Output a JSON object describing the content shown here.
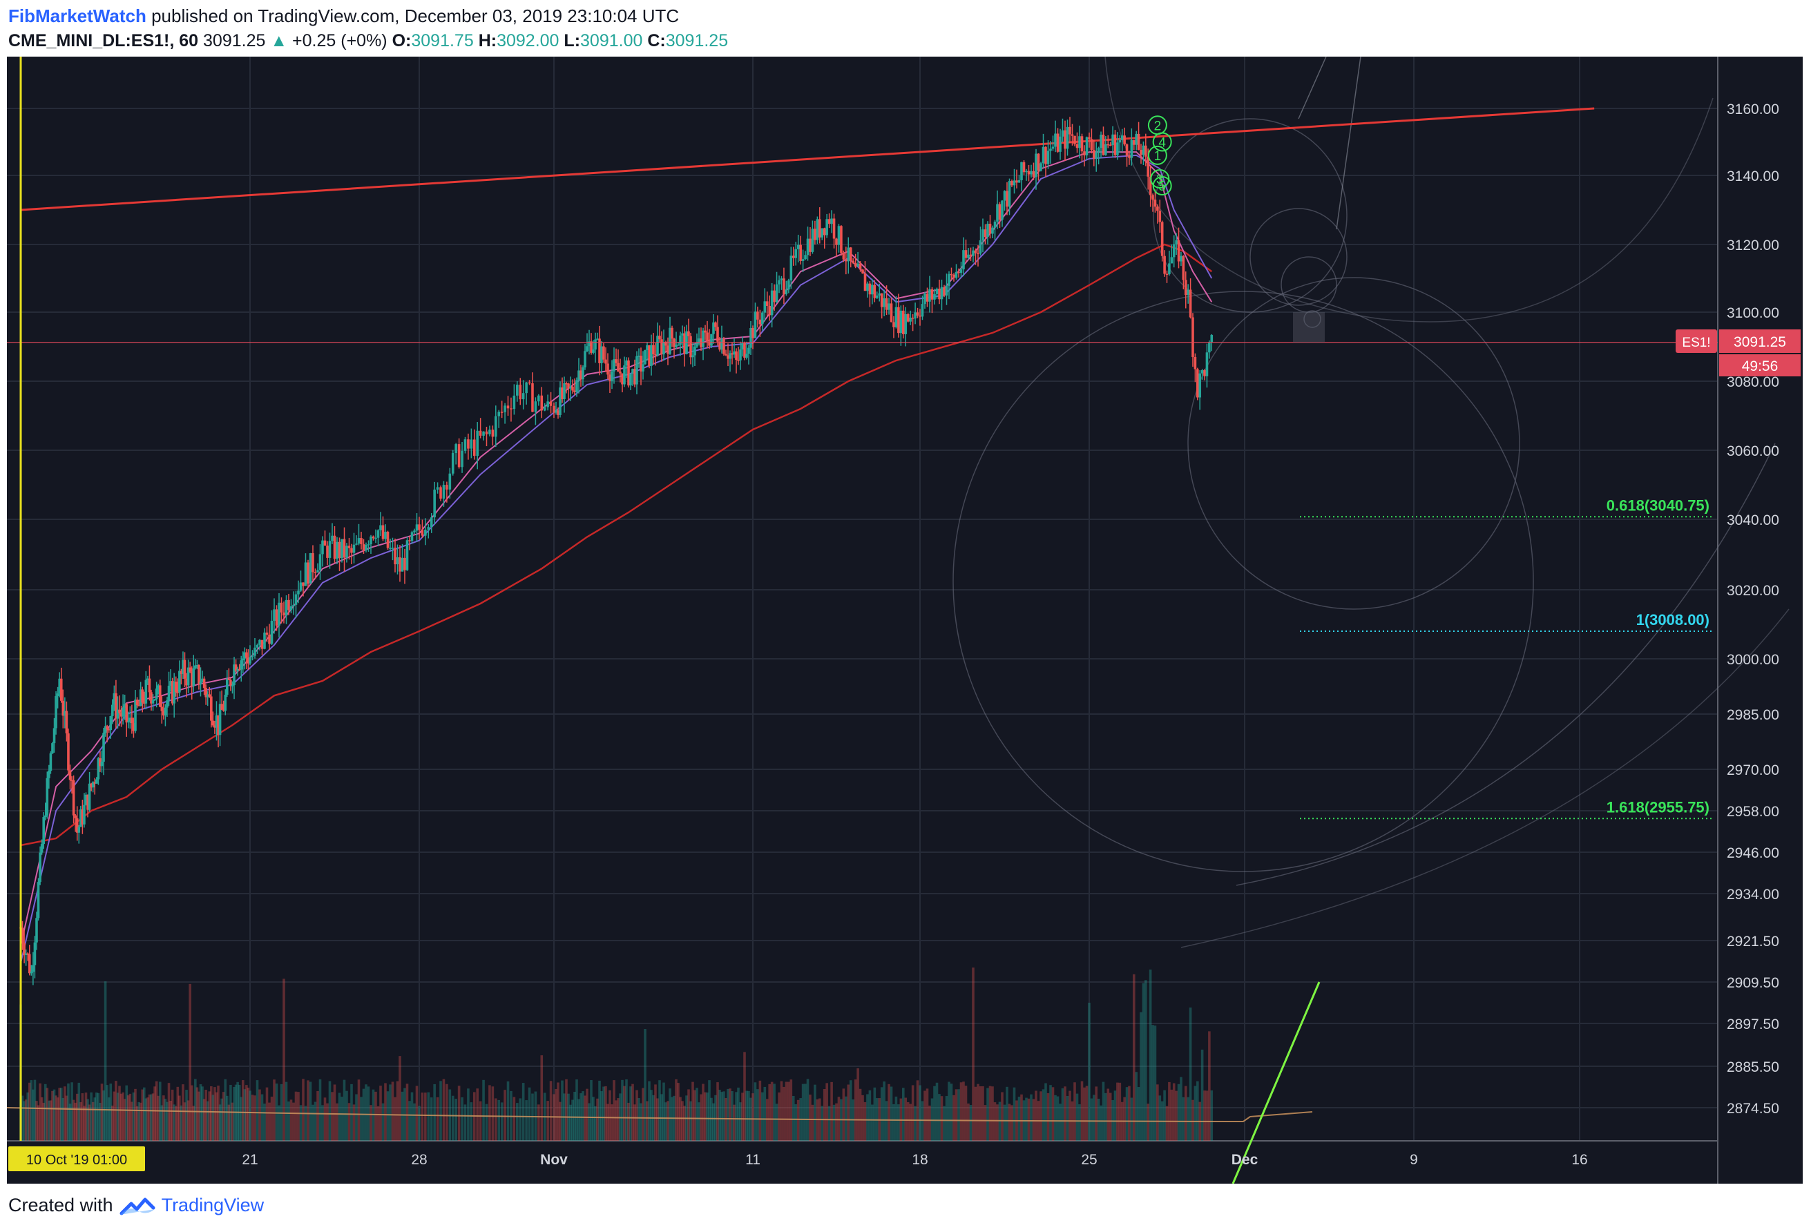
{
  "header": {
    "author": "FibMarketWatch",
    "published": "published on TradingView.com, December 03, 2019 23:10:04 UTC",
    "symbol": "CME_MINI_DL:ES1!, 60",
    "last": "3091.25",
    "up_arrow": "▲",
    "change": "+0.25 (+0%)",
    "o_label": "O:",
    "o_value": "3091.75",
    "h_label": "H:",
    "h_value": "3092.00",
    "l_label": "L:",
    "l_value": "3091.00",
    "c_label": "C:",
    "c_value": "3091.25"
  },
  "chart_data": {
    "type": "candlestick",
    "symbol": "CME_MINI_DL:ES1!",
    "interval": "60",
    "y_ticks": [
      3160.0,
      3140.0,
      3120.0,
      3100.0,
      3080.0,
      3060.0,
      3040.0,
      3020.0,
      3000.0,
      2985.0,
      2970.0,
      2958.0,
      2946.0,
      2934.0,
      2921.5,
      2909.5,
      2897.5,
      2885.5,
      2874.5
    ],
    "y_tick_labels": [
      "3160.00",
      "3140.00",
      "3120.00",
      "3100.00",
      "3080.00",
      "3060.00",
      "3040.00",
      "3020.00",
      "3000.00",
      "2985.00",
      "2970.00",
      "2958.00",
      "2946.00",
      "2934.00",
      "2921.50",
      "2909.50",
      "2897.50",
      "2885.50",
      "2874.50"
    ],
    "x_ticks": [
      {
        "label": "21",
        "bold": false
      },
      {
        "label": "28",
        "bold": false
      },
      {
        "label": "Nov",
        "bold": true
      },
      {
        "label": "11",
        "bold": false
      },
      {
        "label": "18",
        "bold": false
      },
      {
        "label": "25",
        "bold": false
      },
      {
        "label": "Dec",
        "bold": true
      },
      {
        "label": "9",
        "bold": false
      },
      {
        "label": "16",
        "bold": false
      }
    ],
    "cursor_date_label": "10 Oct '19   01:00",
    "last_price_symbol": "ES1!",
    "last_price": "3091.25",
    "countdown": "49:56",
    "price_path": [
      [
        0,
        2925
      ],
      [
        3,
        2912
      ],
      [
        7,
        2960
      ],
      [
        11,
        2995
      ],
      [
        16,
        2952
      ],
      [
        21,
        2968
      ],
      [
        26,
        2988
      ],
      [
        31,
        2982
      ],
      [
        36,
        2992
      ],
      [
        41,
        2988
      ],
      [
        46,
        2996
      ],
      [
        51,
        2995
      ],
      [
        56,
        2982
      ],
      [
        61,
        3000
      ],
      [
        66,
        3001
      ],
      [
        71,
        3013
      ],
      [
        76,
        3024
      ],
      [
        81,
        3032
      ],
      [
        86,
        3030
      ],
      [
        91,
        3038
      ],
      [
        96,
        3026
      ],
      [
        101,
        3040
      ],
      [
        106,
        3058
      ],
      [
        111,
        3064
      ],
      [
        116,
        3078
      ],
      [
        121,
        3072
      ],
      [
        126,
        3077
      ],
      [
        131,
        3092
      ],
      [
        136,
        3083
      ],
      [
        141,
        3082
      ],
      [
        146,
        3089
      ],
      [
        151,
        3093
      ],
      [
        156,
        3089
      ],
      [
        161,
        3095
      ],
      [
        166,
        3085
      ],
      [
        171,
        3098
      ],
      [
        176,
        3108
      ],
      [
        181,
        3120
      ],
      [
        186,
        3128
      ],
      [
        191,
        3112
      ],
      [
        196,
        3105
      ],
      [
        201,
        3097
      ],
      [
        206,
        3103
      ],
      [
        211,
        3109
      ],
      [
        216,
        3118
      ],
      [
        221,
        3130
      ],
      [
        226,
        3140
      ],
      [
        231,
        3147
      ],
      [
        236,
        3152
      ],
      [
        241,
        3148
      ],
      [
        246,
        3150
      ],
      [
        251,
        3148
      ],
      [
        254,
        3132
      ],
      [
        256,
        3114
      ],
      [
        259,
        3118
      ],
      [
        261,
        3104
      ],
      [
        263,
        3078
      ],
      [
        266,
        3090
      ]
    ],
    "ma_fast": [
      [
        0,
        2920
      ],
      [
        10,
        2965
      ],
      [
        20,
        2975
      ],
      [
        30,
        2988
      ],
      [
        40,
        2990
      ],
      [
        50,
        2993
      ],
      [
        60,
        2995
      ],
      [
        70,
        3008
      ],
      [
        80,
        3026
      ],
      [
        90,
        3032
      ],
      [
        100,
        3036
      ],
      [
        110,
        3058
      ],
      [
        120,
        3072
      ],
      [
        130,
        3082
      ],
      [
        140,
        3084
      ],
      [
        150,
        3089
      ],
      [
        160,
        3092
      ],
      [
        170,
        3093
      ],
      [
        180,
        3112
      ],
      [
        190,
        3118
      ],
      [
        200,
        3104
      ],
      [
        210,
        3107
      ],
      [
        220,
        3124
      ],
      [
        230,
        3142
      ],
      [
        240,
        3147
      ],
      [
        250,
        3147
      ],
      [
        255,
        3140
      ],
      [
        258,
        3124
      ],
      [
        262,
        3112
      ],
      [
        266,
        3103
      ]
    ],
    "ma_mid": [
      [
        0,
        2915
      ],
      [
        10,
        2958
      ],
      [
        20,
        2972
      ],
      [
        30,
        2985
      ],
      [
        40,
        2988
      ],
      [
        50,
        2991
      ],
      [
        60,
        2993
      ],
      [
        70,
        3004
      ],
      [
        80,
        3022
      ],
      [
        90,
        3029
      ],
      [
        100,
        3034
      ],
      [
        110,
        3053
      ],
      [
        120,
        3068
      ],
      [
        130,
        3079
      ],
      [
        140,
        3082
      ],
      [
        150,
        3087
      ],
      [
        160,
        3090
      ],
      [
        170,
        3091
      ],
      [
        180,
        3108
      ],
      [
        190,
        3116
      ],
      [
        200,
        3103
      ],
      [
        210,
        3105
      ],
      [
        220,
        3120
      ],
      [
        230,
        3139
      ],
      [
        240,
        3145
      ],
      [
        250,
        3146
      ],
      [
        255,
        3142
      ],
      [
        258,
        3130
      ],
      [
        262,
        3120
      ],
      [
        266,
        3110
      ]
    ],
    "ma_slow": [
      [
        0,
        2948
      ],
      [
        10,
        2950
      ],
      [
        20,
        2958
      ],
      [
        30,
        2962
      ],
      [
        40,
        2970
      ],
      [
        50,
        2976
      ],
      [
        60,
        2982
      ],
      [
        70,
        2990
      ],
      [
        80,
        2994
      ],
      [
        90,
        3002
      ],
      [
        100,
        3008
      ],
      [
        110,
        3016
      ],
      [
        120,
        3026
      ],
      [
        130,
        3035
      ],
      [
        140,
        3042
      ],
      [
        150,
        3050
      ],
      [
        160,
        3058
      ],
      [
        170,
        3066
      ],
      [
        180,
        3072
      ],
      [
        190,
        3080
      ],
      [
        200,
        3086
      ],
      [
        210,
        3090
      ],
      [
        220,
        3094
      ],
      [
        230,
        3100
      ],
      [
        240,
        3108
      ],
      [
        250,
        3116
      ],
      [
        256,
        3120
      ],
      [
        260,
        3118
      ],
      [
        266,
        3112
      ]
    ],
    "trendline": {
      "from": [
        0,
        3130
      ],
      "to": [
        345,
        3160
      ],
      "color": "#e53935"
    },
    "fib_levels": [
      {
        "label": "0.618(3040.75)",
        "value": 3040.75,
        "color": "#39e35a"
      },
      {
        "label": "1(3008.00)",
        "value": 3008.0,
        "color": "#33d6ee"
      },
      {
        "label": "1.618(2955.75)",
        "value": 2955.75,
        "color": "#39e35a"
      }
    ],
    "wave_labels": [
      {
        "label": "2",
        "x": 254.5,
        "y": 3155
      },
      {
        "label": "4",
        "x": 255.5,
        "y": 3150
      },
      {
        "label": "1",
        "x": 254.5,
        "y": 3146
      },
      {
        "label": "3",
        "x": 255.0,
        "y": 3139
      },
      {
        "label": "5",
        "x": 255.5,
        "y": 3137
      }
    ],
    "colors": {
      "up": "#26a69a",
      "down": "#ef5350",
      "background": "#141722",
      "grid": "#262b38",
      "cursor": "#e8e01f"
    },
    "grid": true,
    "legend": "none"
  }
}
